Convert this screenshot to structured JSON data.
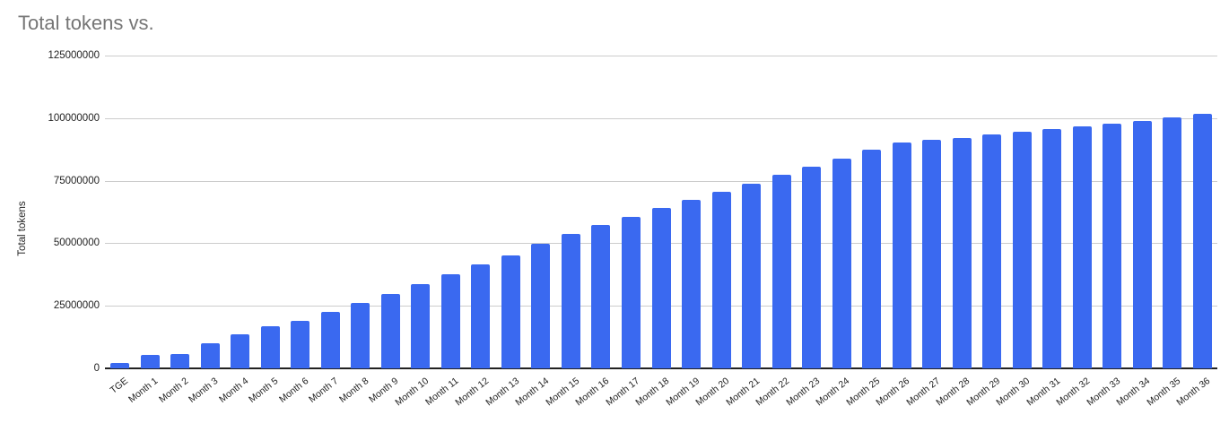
{
  "chart": {
    "title": "Total tokens vs.",
    "y_axis_title": "Total tokens",
    "colors": {
      "bar": "#3a69f0",
      "title_text": "#757575",
      "axis_text": "#222222",
      "gridline": "#cccccc",
      "axis_line": "#212121",
      "background": "#ffffff"
    }
  },
  "chart_data": {
    "type": "bar",
    "title": "Total tokens vs.",
    "xlabel": "",
    "ylabel": "Total tokens",
    "legend": false,
    "grid": true,
    "ylim": [
      0,
      125000000
    ],
    "yticks": [
      0,
      25000000,
      50000000,
      75000000,
      100000000,
      125000000
    ],
    "ytick_labels": [
      "0",
      "25000000",
      "50000000",
      "75000000",
      "100000000",
      "125000000"
    ],
    "categories": [
      "TGE",
      "Month 1",
      "Month 2",
      "Month 3",
      "Month 4",
      "Month 5",
      "Month 6",
      "Month 7",
      "Month 8",
      "Month 9",
      "Month 10",
      "Month 11",
      "Month 12",
      "Month 13",
      "Month 14",
      "Month 15",
      "Month 16",
      "Month 17",
      "Month 18",
      "Month 19",
      "Month 20",
      "Month 21",
      "Month 22",
      "Month 23",
      "Month 24",
      "Month 25",
      "Month 26",
      "Month 27",
      "Month 28",
      "Month 29",
      "Month 30",
      "Month 31",
      "Month 32",
      "Month 33",
      "Month 34",
      "Month 35",
      "Month 36"
    ],
    "values": [
      2200000,
      5400000,
      5800000,
      9900000,
      13700000,
      16800000,
      18900000,
      22500000,
      26100000,
      29900000,
      33500000,
      37700000,
      41500000,
      45200000,
      49700000,
      53600000,
      57400000,
      60700000,
      64000000,
      67300000,
      70500000,
      73900000,
      77500000,
      80600000,
      83900000,
      87400000,
      90100000,
      91200000,
      92100000,
      93400000,
      94600000,
      95800000,
      96800000,
      97800000,
      99000000,
      100400000,
      101600000
    ]
  }
}
